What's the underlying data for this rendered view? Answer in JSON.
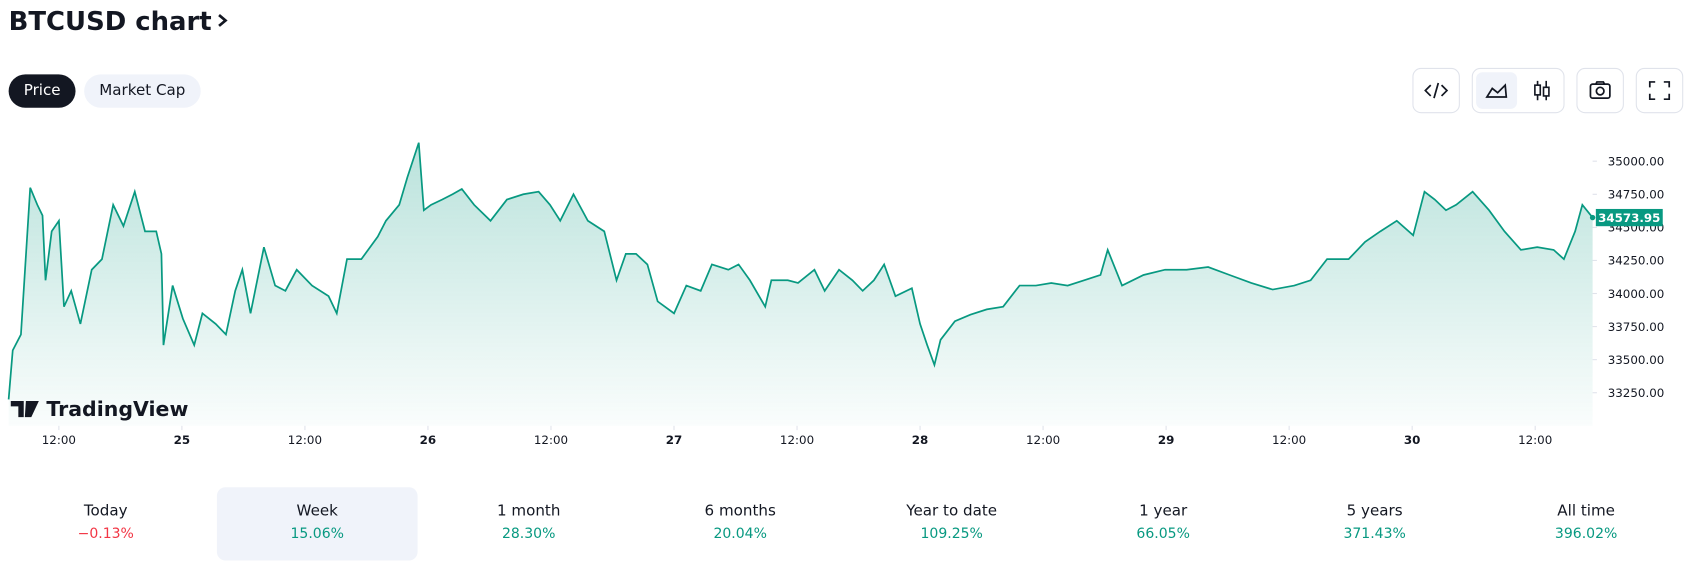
{
  "header": {
    "title": "BTCUSD chart"
  },
  "tabs": [
    {
      "label": "Price",
      "active": true
    },
    {
      "label": "Market Cap",
      "active": false
    }
  ],
  "chart_data": {
    "type": "line",
    "watermark": "TradingView",
    "x": [
      7.1,
      7.5,
      8.3,
      9.2,
      9.9,
      10.4,
      10.7,
      11.3,
      12.0,
      12.5,
      13.2,
      14.1,
      15.2,
      16.2,
      17.3,
      18.3,
      19.4,
      20.4,
      21.5,
      22.0,
      22.2,
      23.1,
      24.1,
      25.2,
      26.0,
      27.3,
      28.3,
      29.2,
      29.9,
      30.7,
      32.0,
      33.1,
      34.1,
      35.2,
      36.7,
      38.3,
      39.1,
      40.1,
      41.5,
      43.1,
      43.9,
      45.2,
      46.0,
      47.1,
      47.6,
      48.3,
      49.4,
      50.4,
      51.3,
      52.5,
      54.1,
      55.7,
      57.3,
      58.8,
      59.9,
      60.9,
      62.2,
      63.6,
      65.2,
      66.4,
      67.3,
      68.3,
      69.4,
      70.4,
      72.0,
      73.2,
      74.6,
      75.7,
      77.3,
      78.3,
      79.4,
      80.9,
      81.5,
      83.1,
      84.1,
      85.7,
      86.7,
      88.1,
      89.4,
      90.4,
      91.5,
      92.5,
      93.6,
      95.2,
      96.0,
      96.7,
      97.4,
      98.0,
      99.4,
      100.9,
      102.5,
      104.1,
      105.7,
      107.3,
      108.8,
      110.4,
      112.0,
      113.6,
      114.3,
      115.7,
      117.8,
      119.9,
      122.0,
      124.1,
      126.2,
      128.3,
      130.4,
      132.5,
      134.1,
      135.7,
      137.8,
      139.4,
      140.9,
      142.5,
      144.1,
      145.2,
      146.2,
      147.3,
      148.3,
      149.9,
      151.5,
      153.0,
      154.6,
      156.2,
      157.8,
      158.8,
      159.9,
      160.6,
      161.6
    ],
    "series": [
      {
        "name": "BTCUSD",
        "color": "#089981",
        "values": [
          33200,
          33570,
          33690,
          34800,
          34670,
          34590,
          34100,
          34470,
          34550,
          33900,
          34020,
          33770,
          34180,
          34260,
          34670,
          34510,
          34770,
          34470,
          34470,
          34300,
          33610,
          34060,
          33810,
          33610,
          33850,
          33770,
          33690,
          34020,
          34180,
          33850,
          34350,
          34060,
          34020,
          34180,
          34060,
          33980,
          33850,
          34260,
          34260,
          34430,
          34550,
          34670,
          34880,
          35140,
          34630,
          34670,
          34710,
          34750,
          34790,
          34670,
          34550,
          34710,
          34750,
          34770,
          34670,
          34550,
          34750,
          34550,
          34470,
          34100,
          34300,
          34300,
          34220,
          33940,
          33850,
          34060,
          34020,
          34220,
          34180,
          34220,
          34100,
          33900,
          34100,
          34100,
          34080,
          34180,
          34020,
          34180,
          34100,
          34020,
          34100,
          34220,
          33980,
          34040,
          33770,
          33610,
          33460,
          33650,
          33790,
          33840,
          33880,
          33900,
          34060,
          34060,
          34080,
          34060,
          34100,
          34140,
          34330,
          34060,
          34140,
          34180,
          34180,
          34200,
          34140,
          34080,
          34030,
          34060,
          34100,
          34260,
          34260,
          34390,
          34470,
          34550,
          34440,
          34770,
          34710,
          34630,
          34670,
          34770,
          34630,
          34470,
          34330,
          34350,
          34330,
          34260,
          34470,
          34670,
          34573.95
        ]
      }
    ],
    "last_value": 34573.95,
    "xlim": [
      7.1,
      161.6
    ],
    "xticks": [
      {
        "value": 12,
        "label": "12:00"
      },
      {
        "value": 24,
        "label": "25"
      },
      {
        "value": 36,
        "label": "12:00"
      },
      {
        "value": 48,
        "label": "26"
      },
      {
        "value": 60,
        "label": "12:00"
      },
      {
        "value": 72,
        "label": "27"
      },
      {
        "value": 84,
        "label": "12:00"
      },
      {
        "value": 96,
        "label": "28"
      },
      {
        "value": 108,
        "label": "12:00"
      },
      {
        "value": 120,
        "label": "29"
      },
      {
        "value": 132,
        "label": "12:00"
      },
      {
        "value": 144,
        "label": "30"
      },
      {
        "value": 156,
        "label": "12:00"
      }
    ],
    "ylim": [
      33000,
      35200
    ],
    "yticks": [
      {
        "value": 33250,
        "label": "33250.00"
      },
      {
        "value": 33500,
        "label": "33500.00"
      },
      {
        "value": 33750,
        "label": "33750.00"
      },
      {
        "value": 34000,
        "label": "34000.00"
      },
      {
        "value": 34250,
        "label": "34250.00"
      },
      {
        "value": 34500,
        "label": "34500.00"
      },
      {
        "value": 34750,
        "label": "34750.00"
      },
      {
        "value": 35000,
        "label": "35000.00"
      }
    ]
  },
  "periods": [
    {
      "label": "Today",
      "value": "−0.13%",
      "negative": true
    },
    {
      "label": "Week",
      "value": "15.06%",
      "active": true
    },
    {
      "label": "1 month",
      "value": "28.30%"
    },
    {
      "label": "6 months",
      "value": "20.04%"
    },
    {
      "label": "Year to date",
      "value": "109.25%"
    },
    {
      "label": "1 year",
      "value": "66.05%"
    },
    {
      "label": "5 years",
      "value": "371.43%"
    },
    {
      "label": "All time",
      "value": "396.02%"
    }
  ]
}
